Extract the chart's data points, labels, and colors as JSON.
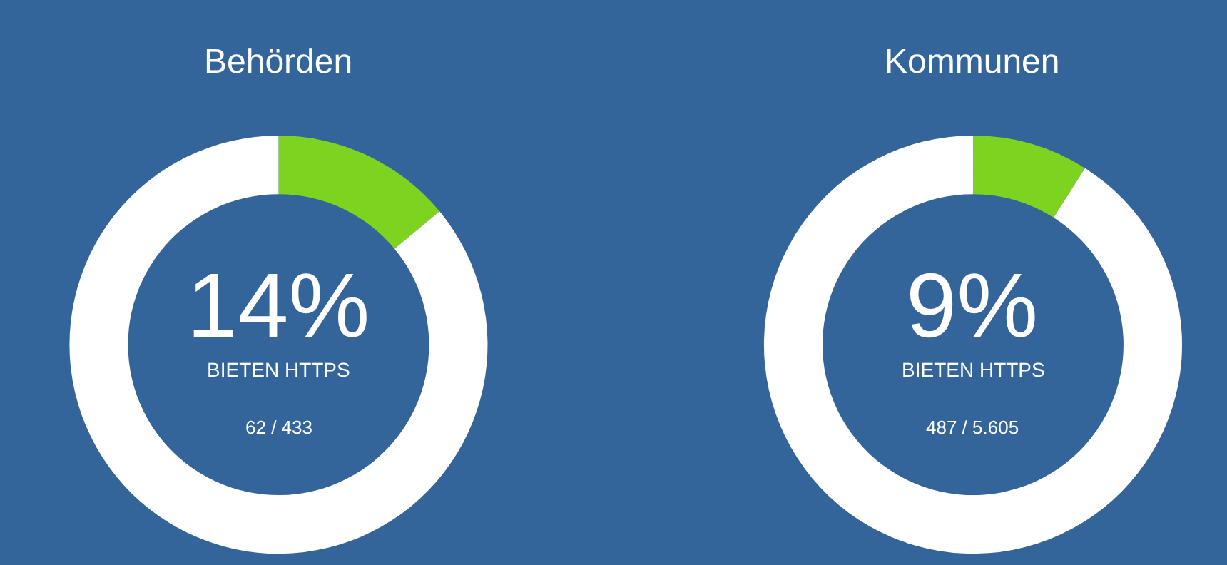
{
  "chart_data": [
    {
      "type": "donut",
      "title": "Behörden",
      "categories": [
        null,
        null
      ],
      "values": [
        14,
        86
      ],
      "colors": [
        "#7ed321",
        "#ffffff"
      ],
      "legend": false,
      "annotations": [
        "14%",
        "BIETEN HTTPS",
        "62 / 433"
      ]
    },
    {
      "type": "donut",
      "title": "Kommunen",
      "categories": [
        null,
        null
      ],
      "values": [
        9,
        91
      ],
      "colors": [
        "#7ed321",
        "#ffffff"
      ],
      "legend": false,
      "annotations": [
        "9%",
        "BIETEN HTTPS",
        "487 / 5.605"
      ]
    }
  ]
}
